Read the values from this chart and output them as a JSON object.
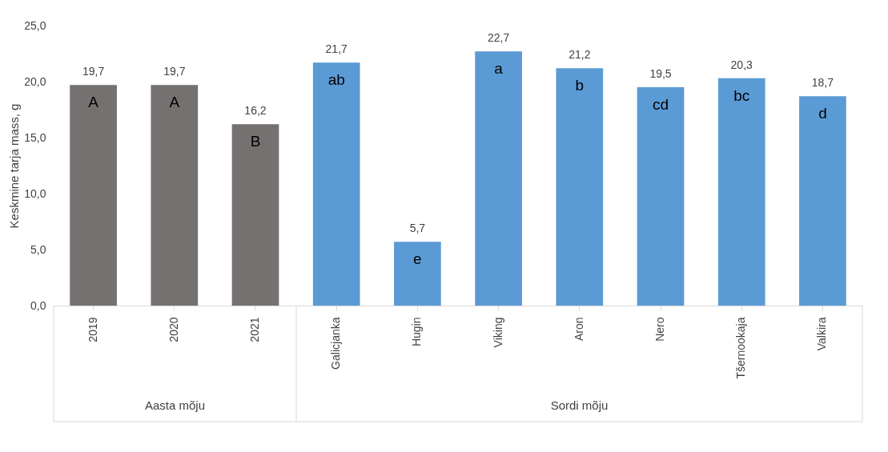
{
  "chart_data": {
    "type": "bar",
    "ylabel": "Keskmine tarja mass, g",
    "categories": [
      "2019",
      "2020",
      "2021",
      "Galicjanka",
      "Hugin",
      "Viking",
      "Aron",
      "Nero",
      "Tšernookaja",
      "Valkira"
    ],
    "values": [
      19.7,
      19.7,
      16.2,
      21.7,
      5.7,
      22.7,
      21.2,
      19.5,
      20.3,
      18.7
    ],
    "value_labels": [
      "19,7",
      "19,7",
      "16,2",
      "21,7",
      "5,7",
      "22,7",
      "21,2",
      "19,5",
      "20,3",
      "18,7"
    ],
    "colors": [
      "#767171",
      "#767171",
      "#767171",
      "#5b9bd5",
      "#5b9bd5",
      "#5b9bd5",
      "#5b9bd5",
      "#5b9bd5",
      "#5b9bd5",
      "#5b9bd5"
    ],
    "ylim": [
      0,
      25
    ],
    "yticks": [
      {
        "value": 0,
        "label": "0,0"
      },
      {
        "value": 5,
        "label": "5,0"
      },
      {
        "value": 10,
        "label": "10,0"
      },
      {
        "value": 15,
        "label": "15,0"
      },
      {
        "value": 20,
        "label": "20,0"
      },
      {
        "value": 25,
        "label": "25,0"
      }
    ],
    "grid": false,
    "legend": false,
    "annotations": [
      "A",
      "A",
      "B",
      "ab",
      "e",
      "a",
      "b",
      "cd",
      "bc",
      "d",
      "Aasta mõju",
      "Sordi mõju"
    ]
  }
}
